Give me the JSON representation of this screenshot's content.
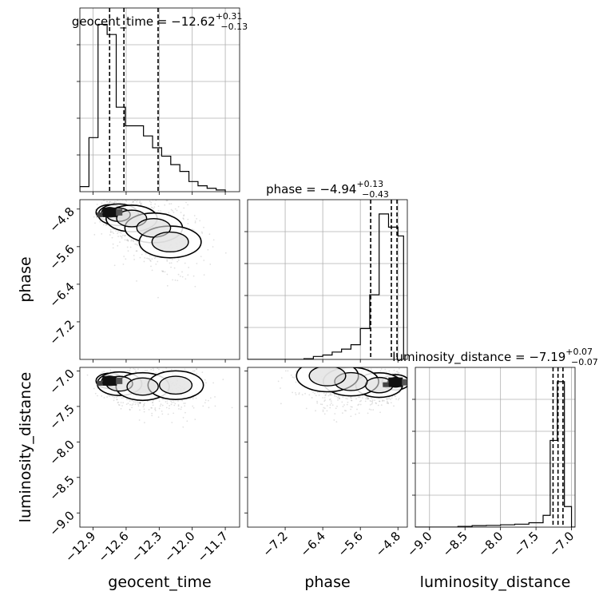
{
  "chart_data": {
    "type": "corner",
    "parameters": [
      "geocent_time",
      "phase",
      "luminosity_distance"
    ],
    "diagonal": [
      {
        "parameter": "geocent_time",
        "title_prefix": "geocent_time = ",
        "value": "−12.62",
        "upper": "+0.31",
        "lower": "−0.13",
        "xlim": [
          -13.02,
          -11.57
        ],
        "quantiles": [
          -12.75,
          -12.62,
          -12.31
        ],
        "hist_edges": [
          -13.02,
          -12.9375,
          -12.855,
          -12.7725,
          -12.69,
          -12.6075,
          -12.525,
          -12.4425,
          -12.36,
          -12.2775,
          -12.195,
          -12.1125,
          -12.03,
          -11.9475,
          -11.865,
          -11.7825,
          -11.7
        ],
        "hist_values": [
          0.03,
          0.32,
          0.99,
          0.93,
          0.5,
          0.39,
          0.39,
          0.33,
          0.26,
          0.21,
          0.16,
          0.12,
          0.06,
          0.035,
          0.02,
          0.01
        ],
        "grid": true
      },
      {
        "parameter": "phase",
        "title_prefix": "phase = ",
        "value": "−4.94",
        "upper": "+0.13",
        "lower": "−0.43",
        "xlim": [
          -8.0,
          -4.6
        ],
        "quantiles": [
          -5.38,
          -4.94,
          -4.82
        ],
        "hist_edges": [
          -8.0,
          -7.8,
          -7.6,
          -7.4,
          -7.2,
          -7.0,
          -6.8,
          -6.6,
          -6.4,
          -6.2,
          -6.0,
          -5.8,
          -5.6,
          -5.4,
          -5.2,
          -5.0,
          -4.8,
          -4.68
        ],
        "hist_values": [
          0.0,
          0.0,
          0.0,
          0.0,
          0.0,
          0.0,
          0.005,
          0.02,
          0.03,
          0.05,
          0.07,
          0.1,
          0.21,
          0.44,
          0.99,
          0.9,
          0.84
        ],
        "grid": true
      },
      {
        "parameter": "luminosity_distance",
        "title_prefix": "luminosity_distance = ",
        "value": "−7.19",
        "upper": "+0.07",
        "lower": "−0.07",
        "xlim": [
          -9.2,
          -6.95
        ],
        "quantiles": [
          -7.26,
          -7.19,
          -7.12
        ],
        "hist_edges": [
          -9.2,
          -9.0,
          -8.8,
          -8.6,
          -8.4,
          -8.2,
          -8.0,
          -7.8,
          -7.6,
          -7.4,
          -7.3,
          -7.2,
          -7.1,
          -7.0,
          -6.95
        ],
        "hist_values": [
          0.0,
          0.0,
          0.0,
          0.005,
          0.01,
          0.012,
          0.016,
          0.02,
          0.03,
          0.08,
          0.59,
          0.99,
          0.14,
          0.0
        ],
        "grid": true
      }
    ],
    "panels_2d": [
      {
        "x": "geocent_time",
        "y": "phase",
        "xlim": [
          -13.02,
          -11.57
        ],
        "ylim": [
          -8.0,
          -4.6
        ],
        "density_peaks": [
          {
            "x": -12.75,
            "y": -4.87,
            "weight": 1.0
          },
          {
            "x": -12.67,
            "y": -4.92,
            "weight": 0.7
          },
          {
            "x": -12.55,
            "y": -5.0,
            "weight": 0.45
          },
          {
            "x": -12.35,
            "y": -5.2,
            "weight": 0.3
          },
          {
            "x": -12.2,
            "y": -5.5,
            "weight": 0.2
          }
        ]
      },
      {
        "x": "geocent_time",
        "y": "luminosity_distance",
        "xlim": [
          -13.02,
          -11.57
        ],
        "ylim": [
          -9.2,
          -6.95
        ],
        "density_peaks": [
          {
            "x": -12.75,
            "y": -7.14,
            "weight": 1.0
          },
          {
            "x": -12.66,
            "y": -7.18,
            "weight": 0.6
          },
          {
            "x": -12.45,
            "y": -7.22,
            "weight": 0.4
          },
          {
            "x": -12.15,
            "y": -7.2,
            "weight": 0.35
          }
        ]
      },
      {
        "x": "phase",
        "y": "luminosity_distance",
        "xlim": [
          -8.0,
          -4.6
        ],
        "ylim": [
          -9.2,
          -6.95
        ],
        "density_peaks": [
          {
            "x": -4.85,
            "y": -7.16,
            "weight": 1.0
          },
          {
            "x": -5.2,
            "y": -7.2,
            "weight": 0.55
          },
          {
            "x": -5.8,
            "y": -7.15,
            "weight": 0.35
          },
          {
            "x": -6.3,
            "y": -7.07,
            "weight": 0.2
          }
        ]
      }
    ],
    "ticks": {
      "geocent_time": [
        "−12.9",
        "−12.6",
        "−12.3",
        "−12.0",
        "−11.7"
      ],
      "geocent_time_values": [
        -12.9,
        -12.6,
        -12.3,
        -12.0,
        -11.7
      ],
      "phase": [
        "−7.2",
        "−6.4",
        "−5.6",
        "−4.8"
      ],
      "phase_values": [
        -7.2,
        -6.4,
        -5.6,
        -4.8
      ],
      "luminosity_distance_x": [
        "−9.0",
        "−8.5",
        "−8.0",
        "−7.5",
        "−7.0"
      ],
      "luminosity_distance_x_values": [
        -9.0,
        -8.5,
        -8.0,
        -7.5,
        -7.0
      ],
      "luminosity_distance_y": [
        "−7.0",
        "−7.5",
        "−8.0",
        "−8.5",
        "−9.0"
      ],
      "luminosity_distance_y_values": [
        -7.0,
        -7.5,
        -8.0,
        -8.5,
        -9.0
      ],
      "phase_y": [
        "−4.8",
        "−5.6",
        "−6.4",
        "−7.2"
      ],
      "phase_y_values": [
        -4.8,
        -5.6,
        -6.4,
        -7.2
      ]
    },
    "axis_labels": {
      "x": [
        "geocent_time",
        "phase",
        "luminosity_distance"
      ],
      "y": [
        "phase",
        "luminosity_distance"
      ]
    }
  }
}
